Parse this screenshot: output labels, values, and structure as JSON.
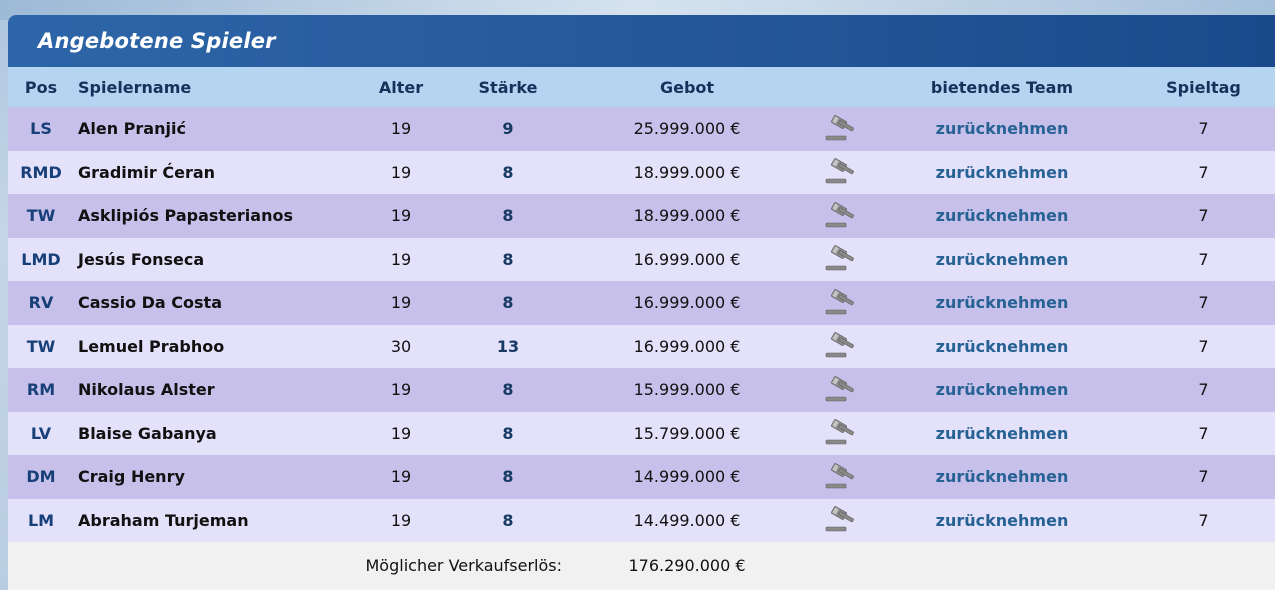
{
  "panel": {
    "title": "Angebotene Spieler"
  },
  "columns": {
    "pos": "Pos",
    "name": "Spielername",
    "alter": "Alter",
    "staerke": "Stärke",
    "gebot": "Gebot",
    "team": "bietendes Team",
    "spieltag": "Spieltag"
  },
  "rows": [
    {
      "pos": "LS",
      "name": "Alen Pranjić",
      "alter": "19",
      "staerke": "9",
      "gebot": "25.999.000 €",
      "team": "zurücknehmen",
      "spieltag": "7",
      "icon": "auction-hammer-icon"
    },
    {
      "pos": "RMD",
      "name": "Gradimir Ćeran",
      "alter": "19",
      "staerke": "8",
      "gebot": "18.999.000 €",
      "team": "zurücknehmen",
      "spieltag": "7",
      "icon": "auction-hammer-icon"
    },
    {
      "pos": "TW",
      "name": "Asklipiós Papasterianos",
      "alter": "19",
      "staerke": "8",
      "gebot": "18.999.000 €",
      "team": "zurücknehmen",
      "spieltag": "7",
      "icon": "auction-hammer-icon"
    },
    {
      "pos": "LMD",
      "name": "Jesús Fonseca",
      "alter": "19",
      "staerke": "8",
      "gebot": "16.999.000 €",
      "team": "zurücknehmen",
      "spieltag": "7",
      "icon": "auction-hammer-icon"
    },
    {
      "pos": "RV",
      "name": "Cassio Da Costa",
      "alter": "19",
      "staerke": "8",
      "gebot": "16.999.000 €",
      "team": "zurücknehmen",
      "spieltag": "7",
      "icon": "auction-hammer-icon"
    },
    {
      "pos": "TW",
      "name": "Lemuel Prabhoo",
      "alter": "30",
      "staerke": "13",
      "gebot": "16.999.000 €",
      "team": "zurücknehmen",
      "spieltag": "7",
      "icon": "auction-hammer-icon"
    },
    {
      "pos": "RM",
      "name": "Nikolaus Alster",
      "alter": "19",
      "staerke": "8",
      "gebot": "15.999.000 €",
      "team": "zurücknehmen",
      "spieltag": "7",
      "icon": "auction-hammer-icon"
    },
    {
      "pos": "LV",
      "name": "Blaise Gabanya",
      "alter": "19",
      "staerke": "8",
      "gebot": "15.799.000 €",
      "team": "zurücknehmen",
      "spieltag": "7",
      "icon": "auction-hammer-icon"
    },
    {
      "pos": "DM",
      "name": "Craig Henry",
      "alter": "19",
      "staerke": "8",
      "gebot": "14.999.000 €",
      "team": "zurücknehmen",
      "spieltag": "7",
      "icon": "auction-hammer-icon"
    },
    {
      "pos": "LM",
      "name": "Abraham Turjeman",
      "alter": "19",
      "staerke": "8",
      "gebot": "14.499.000 €",
      "team": "zurücknehmen",
      "spieltag": "7",
      "icon": "auction-hammer-icon"
    }
  ],
  "footer": {
    "label": "Möglicher Verkaufserlös:",
    "value": "176.290.000 €"
  },
  "colors": {
    "header_bar": "#25589b",
    "column_header_bg": "#b4d4f2",
    "row_odd": "#c7c0ea",
    "row_even": "#e4e1fb",
    "link": "#276294"
  }
}
